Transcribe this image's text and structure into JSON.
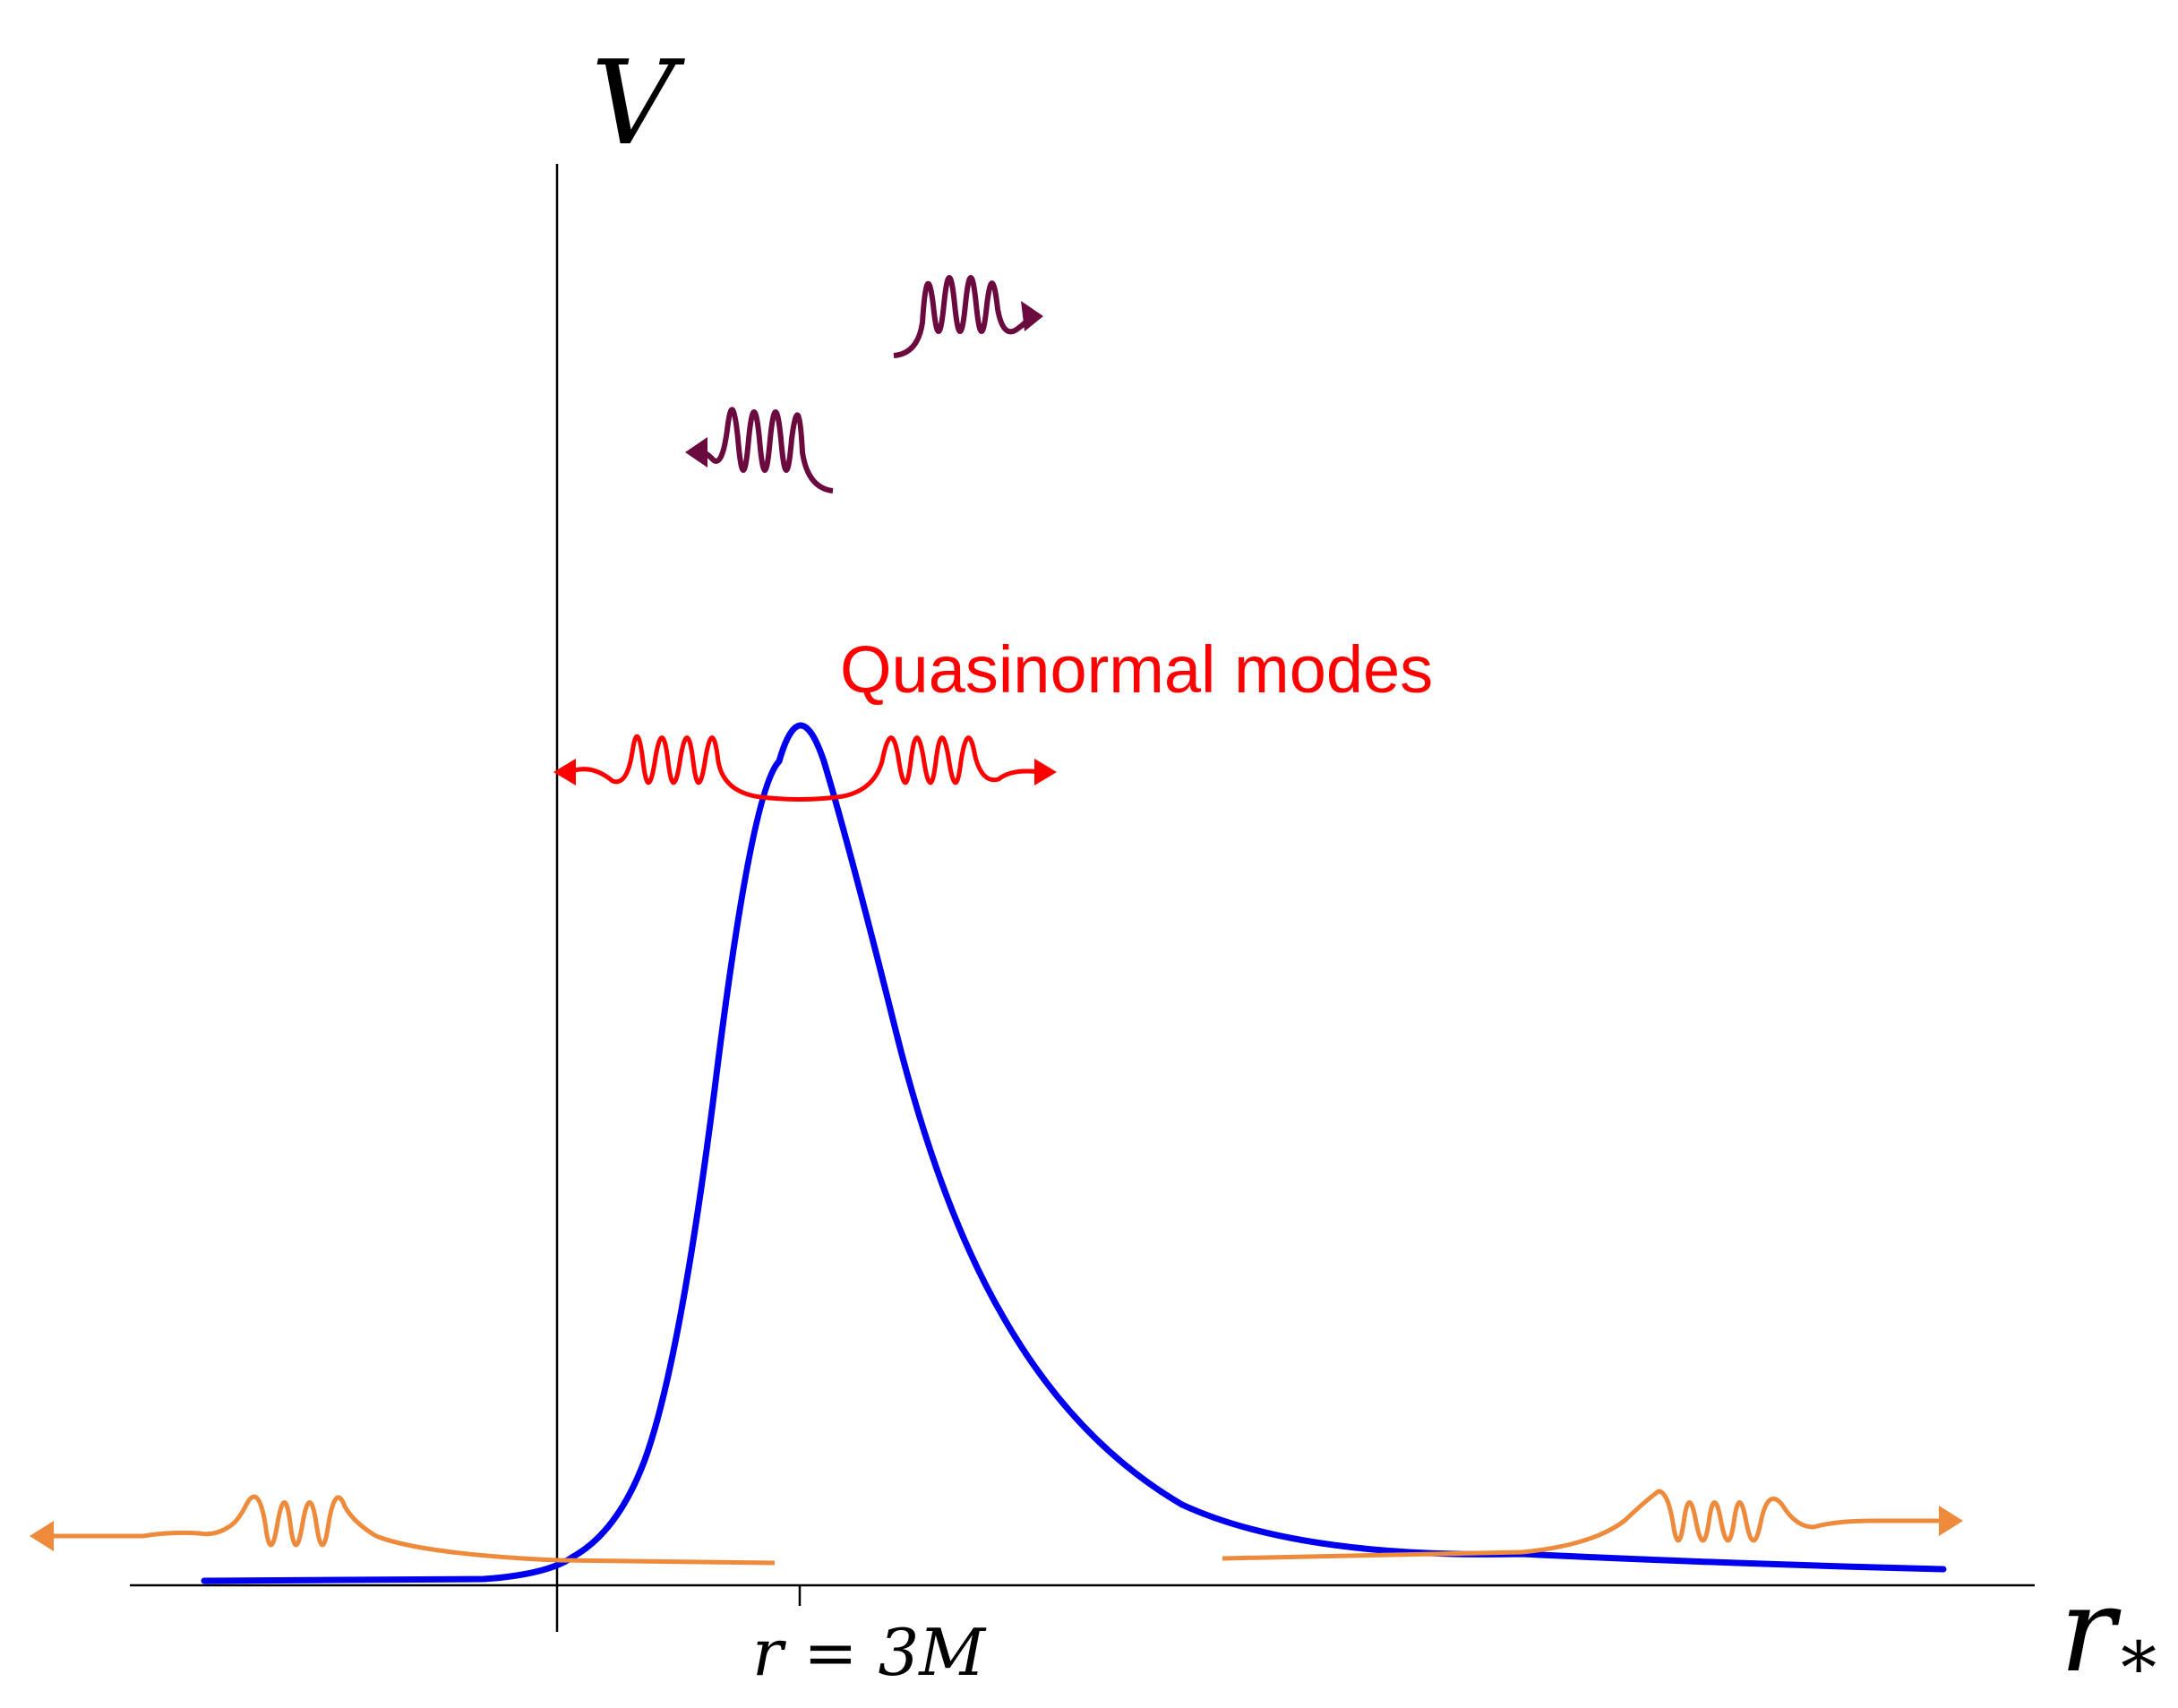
{
  "colors": {
    "axis": "#000000",
    "potential": "#0000ee",
    "qnm": "#ff0000",
    "incident": "#6b0a3f",
    "outgoing": "#ee8a3c"
  },
  "labels": {
    "y_axis": "V",
    "x_axis_main": "r",
    "x_axis_sub": "*",
    "peak_tick": "r = 3M",
    "qnm_caption": "Quasinormal modes"
  }
}
